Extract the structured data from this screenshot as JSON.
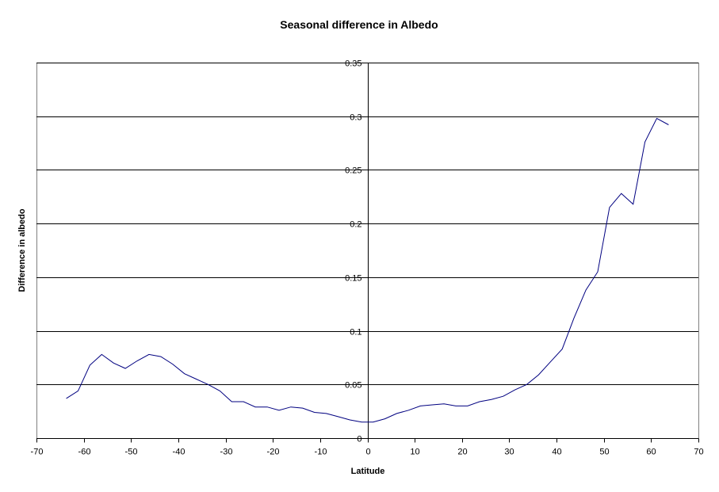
{
  "chart_data": {
    "type": "line",
    "title": "Seasonal difference in Albedo",
    "xlabel": "Latitude",
    "ylabel": "Difference in albedo",
    "xlim": [
      -70,
      70
    ],
    "ylim": [
      0,
      0.35
    ],
    "x_ticks": [
      -70,
      -60,
      -50,
      -40,
      -30,
      -20,
      -10,
      0,
      10,
      20,
      30,
      40,
      50,
      60,
      70
    ],
    "y_ticks": [
      0,
      0.05,
      0.1,
      0.15,
      0.2,
      0.25,
      0.3,
      0.35
    ],
    "grid": "horizontal",
    "legend": "none",
    "line_color": "#000080",
    "series": [
      {
        "x": [
          -63.7,
          -61.2,
          -58.7,
          -56.2,
          -53.7,
          -51.2,
          -48.7,
          -46.2,
          -43.7,
          -41.2,
          -38.7,
          -36.2,
          -33.7,
          -31.2,
          -28.7,
          -26.2,
          -23.7,
          -21.2,
          -18.7,
          -16.2,
          -13.7,
          -11.2,
          -8.7,
          -6.2,
          -3.7,
          -1.2,
          1.2,
          3.7,
          6.2,
          8.7,
          11.2,
          13.7,
          16.2,
          18.7,
          21.2,
          23.7,
          26.2,
          28.7,
          31.2,
          33.7,
          36.2,
          38.7,
          41.2,
          43.7,
          46.2,
          48.7,
          51.2,
          53.7,
          56.2,
          58.7,
          61.2,
          63.7
        ],
        "y": [
          0.037,
          0.044,
          0.068,
          0.078,
          0.07,
          0.065,
          0.072,
          0.078,
          0.076,
          0.069,
          0.06,
          0.055,
          0.05,
          0.044,
          0.034,
          0.034,
          0.029,
          0.029,
          0.026,
          0.029,
          0.028,
          0.024,
          0.023,
          0.02,
          0.017,
          0.015,
          0.015,
          0.018,
          0.023,
          0.026,
          0.03,
          0.031,
          0.032,
          0.03,
          0.03,
          0.034,
          0.036,
          0.039,
          0.045,
          0.05,
          0.059,
          0.071,
          0.083,
          0.112,
          0.138,
          0.155,
          0.215,
          0.228,
          0.218,
          0.276,
          0.298,
          0.292
        ]
      }
    ]
  }
}
